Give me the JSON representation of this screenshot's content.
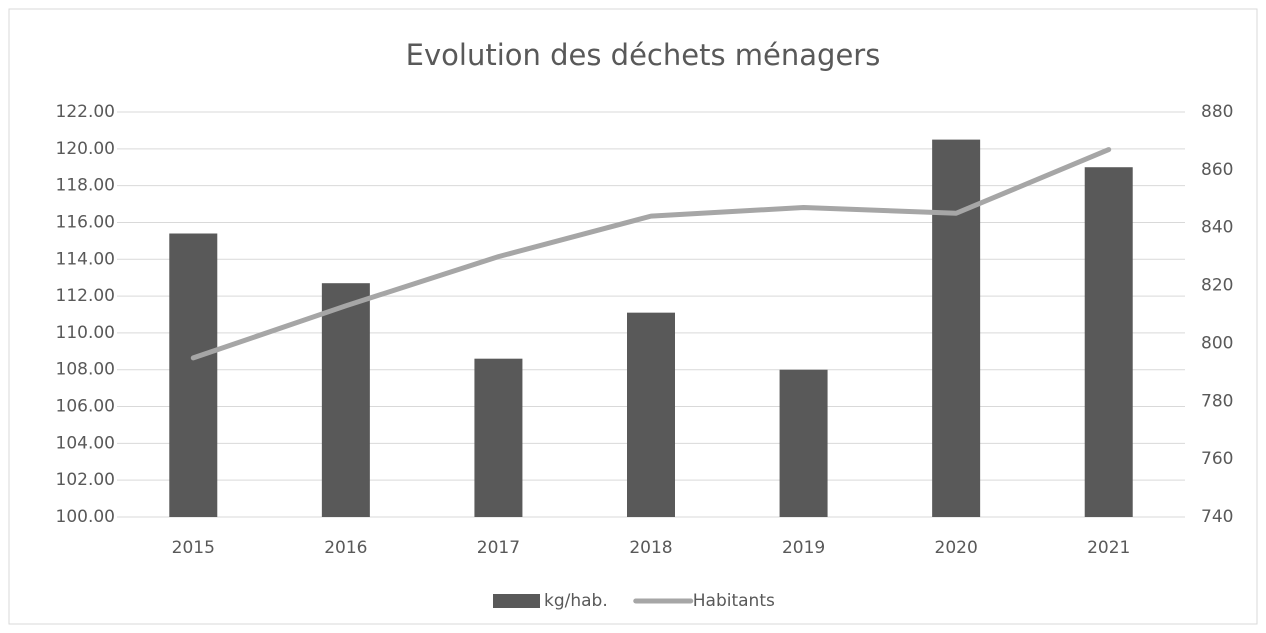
{
  "chart_data": {
    "type": "bar",
    "title": "Evolution des déchets ménagers",
    "categories": [
      "2015",
      "2016",
      "2017",
      "2018",
      "2019",
      "2020",
      "2021"
    ],
    "series": [
      {
        "name": "kg/hab.",
        "type": "bar",
        "color": "#595959",
        "values": [
          115.4,
          112.7,
          108.6,
          111.1,
          108.0,
          120.5,
          119.0
        ]
      },
      {
        "name": "Habitants",
        "type": "line",
        "axis": "y2",
        "color": "#a6a6a6",
        "values": [
          795,
          813,
          830,
          844,
          847,
          845,
          867
        ]
      }
    ],
    "ylim": [
      100,
      122
    ],
    "yticks": [
      {
        "value": 100,
        "label": "100.00"
      },
      {
        "value": 102,
        "label": "102.00"
      },
      {
        "value": 104,
        "label": "104.00"
      },
      {
        "value": 106,
        "label": "106.00"
      },
      {
        "value": 108,
        "label": "108.00"
      },
      {
        "value": 110,
        "label": "110.00"
      },
      {
        "value": 112,
        "label": "112.00"
      },
      {
        "value": 114,
        "label": "114.00"
      },
      {
        "value": 116,
        "label": "116.00"
      },
      {
        "value": 118,
        "label": "118.00"
      },
      {
        "value": 120,
        "label": "120.00"
      },
      {
        "value": 122,
        "label": "122.00"
      }
    ],
    "y2lim": [
      740,
      880
    ],
    "y2ticks": [
      740,
      760,
      780,
      800,
      820,
      840,
      860,
      880
    ],
    "grid": true,
    "legend": "bottom"
  }
}
